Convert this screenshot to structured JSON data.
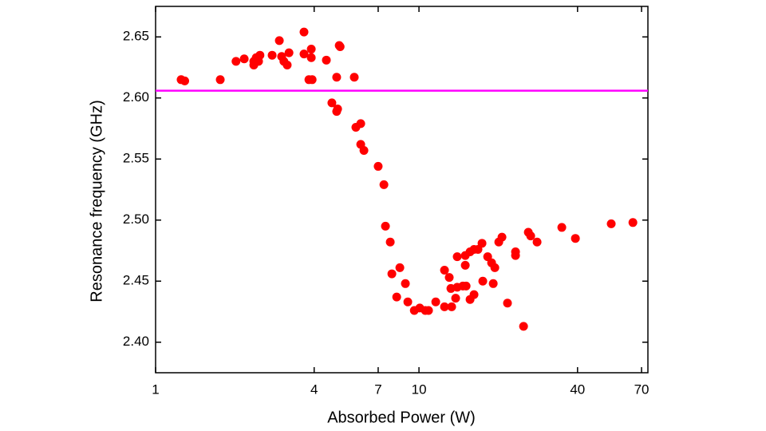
{
  "chart_data": {
    "type": "scatter",
    "x_label": "Absorbed Power (W)",
    "y_label": "Resonance frequency (GHz)",
    "xscale": "log",
    "xlim": [
      1,
      74
    ],
    "xticks": [
      1,
      4,
      7,
      10,
      40,
      70
    ],
    "ylim": [
      2.375,
      2.675
    ],
    "yticks": [
      {
        "value": 2.4,
        "label": "2.40"
      },
      2.45,
      {
        "value": 2.5,
        "label": "2.50"
      },
      2.55,
      {
        "value": 2.6,
        "label": "2.60"
      },
      2.65
    ],
    "grid": false,
    "color": "#ff0000",
    "reference_line": {
      "value": 2.606,
      "color": "#ff00ff"
    },
    "x": [
      1.25,
      1.29,
      1.76,
      2.02,
      2.17,
      2.36,
      2.41,
      2.49,
      2.36,
      2.46,
      2.77,
      2.95,
      3.01,
      3.07,
      3.16,
      3.21,
      3.66,
      3.66,
      3.82,
      3.9,
      3.9,
      3.93,
      4.45,
      4.67,
      4.87,
      4.87,
      4.91,
      4.98,
      5.02,
      5.68,
      5.76,
      6.01,
      6.01,
      6.18,
      7.0,
      7.36,
      7.46,
      7.78,
      7.89,
      8.23,
      8.46,
      8.88,
      9.07,
      9.6,
      10.07,
      10.57,
      10.87,
      11.58,
      12.5,
      12.5,
      13.03,
      13.22,
      13.31,
      13.78,
      13.97,
      13.97,
      14.68,
      14.99,
      14.99,
      15.1,
      15.63,
      15.63,
      16.18,
      16.18,
      16.75,
      17.35,
      17.47,
      18.23,
      18.87,
      19.14,
      19.41,
      20.09,
      20.66,
      21.68,
      23.26,
      23.26,
      24.95,
      26.01,
      26.56,
      28.08,
      34.86,
      39.26,
      53.7,
      64.9
    ],
    "values": [
      2.615,
      2.614,
      2.615,
      2.63,
      2.632,
      2.63,
      2.633,
      2.635,
      2.627,
      2.63,
      2.635,
      2.647,
      2.634,
      2.63,
      2.627,
      2.637,
      2.654,
      2.636,
      2.615,
      2.633,
      2.64,
      2.615,
      2.631,
      2.596,
      2.617,
      2.589,
      2.591,
      2.643,
      2.642,
      2.617,
      2.576,
      2.579,
      2.562,
      2.557,
      2.544,
      2.529,
      2.495,
      2.482,
      2.456,
      2.437,
      2.461,
      2.448,
      2.433,
      2.426,
      2.428,
      2.426,
      2.426,
      2.433,
      2.429,
      2.459,
      2.453,
      2.444,
      2.429,
      2.436,
      2.47,
      2.445,
      2.446,
      2.471,
      2.463,
      2.446,
      2.474,
      2.435,
      2.439,
      2.476,
      2.476,
      2.481,
      2.45,
      2.47,
      2.465,
      2.448,
      2.461,
      2.482,
      2.486,
      2.432,
      2.474,
      2.471,
      2.413,
      2.49,
      2.487,
      2.482,
      2.494,
      2.485,
      2.497,
      2.498
    ]
  }
}
